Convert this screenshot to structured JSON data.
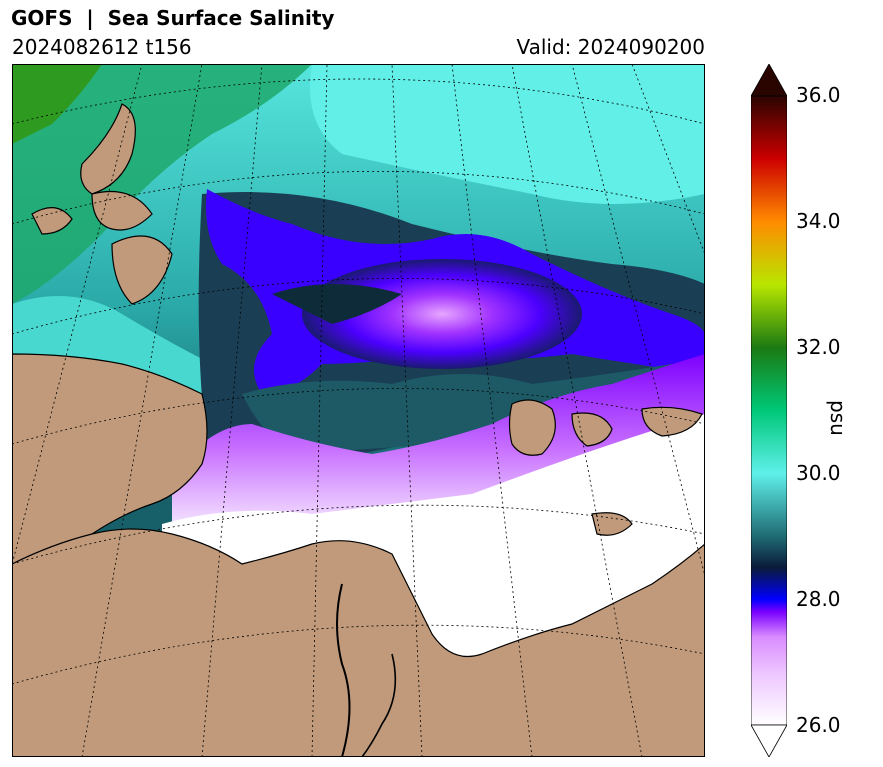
{
  "header": {
    "title": "GOFS  |  Sea Surface Salinity",
    "run": "2024082612 t156",
    "valid": "Valid: 2024090200"
  },
  "map": {
    "land_color": "#c09a7a",
    "ocean_fill": "salinity colormap",
    "graticule": "dotted"
  },
  "colorbar": {
    "units": "psu",
    "min": 26.0,
    "max": 36.0,
    "extend": "both",
    "ticks": [
      "36.0",
      "34.0",
      "32.0",
      "30.0",
      "28.0",
      "26.0"
    ],
    "colors": {
      "26.0": "#ffffff",
      "27.0": "#d98cff",
      "27.8": "#7a00ff",
      "28.0": "#0000ff",
      "28.5": "#0a1a3a",
      "29.0": "#1f6b73",
      "30.0": "#5ff0ea",
      "31.0": "#00c878",
      "32.0": "#1b7a12",
      "33.0": "#b8e600",
      "34.0": "#ff8c00",
      "35.0": "#cc0000",
      "36.0": "#2a0500"
    }
  }
}
